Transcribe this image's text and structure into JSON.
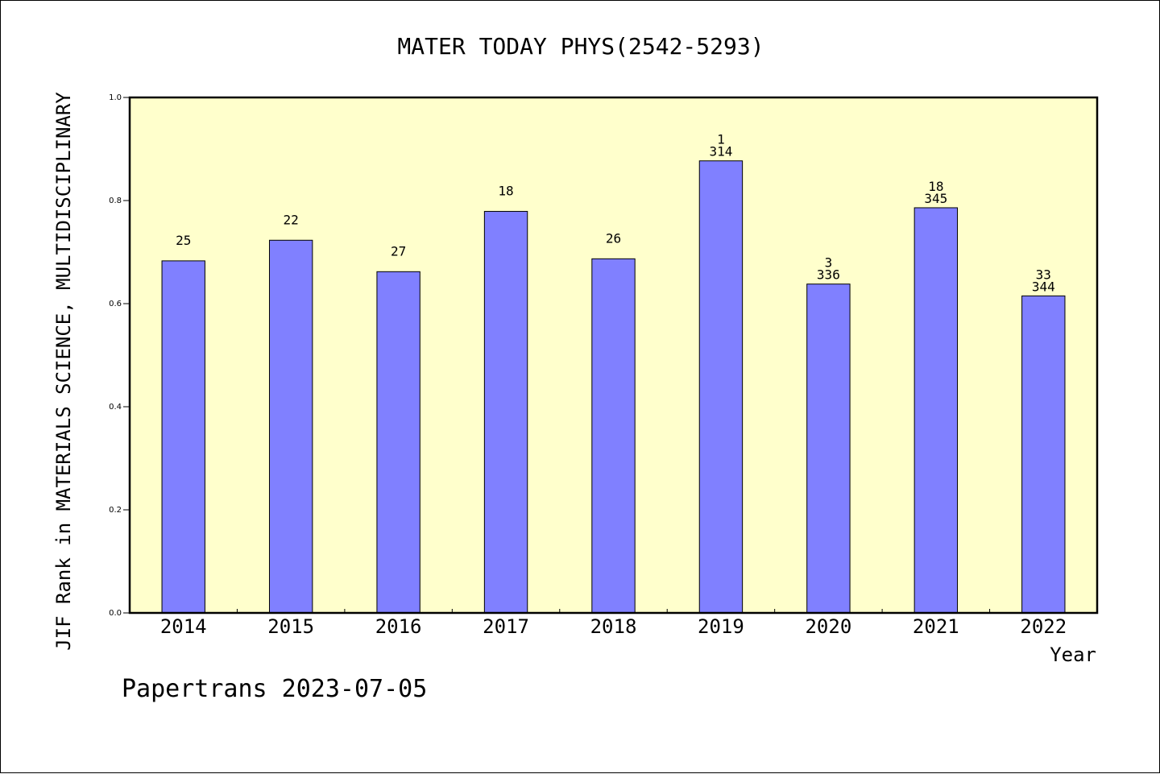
{
  "chart_data": {
    "type": "bar",
    "title": "MATER TODAY PHYS(2542-5293)",
    "xlabel": "Year",
    "ylabel": "JIF Rank in MATERIALS SCIENCE, MULTIDISCIPLINARY",
    "ylim": [
      0,
      1.0
    ],
    "yticks": [
      "0.0",
      "0.2",
      "0.4",
      "0.6",
      "0.8",
      "1.0"
    ],
    "categories": [
      "2014",
      "2015",
      "2016",
      "2017",
      "2018",
      "2019",
      "2020",
      "2021",
      "2022"
    ],
    "values": [
      0.683,
      0.723,
      0.662,
      0.779,
      0.687,
      0.877,
      0.638,
      0.786,
      0.615
    ],
    "bar_labels": [
      [
        "25"
      ],
      [
        "22"
      ],
      [
        "27"
      ],
      [
        "18"
      ],
      [
        "26"
      ],
      [
        "1",
        "314"
      ],
      [
        "3",
        "336"
      ],
      [
        "18",
        "345"
      ],
      [
        "33",
        "344"
      ]
    ],
    "grid": false,
    "plot_background": "#ffffcc",
    "bar_color": "#8080ff"
  },
  "footer": "Papertrans 2023-07-05"
}
